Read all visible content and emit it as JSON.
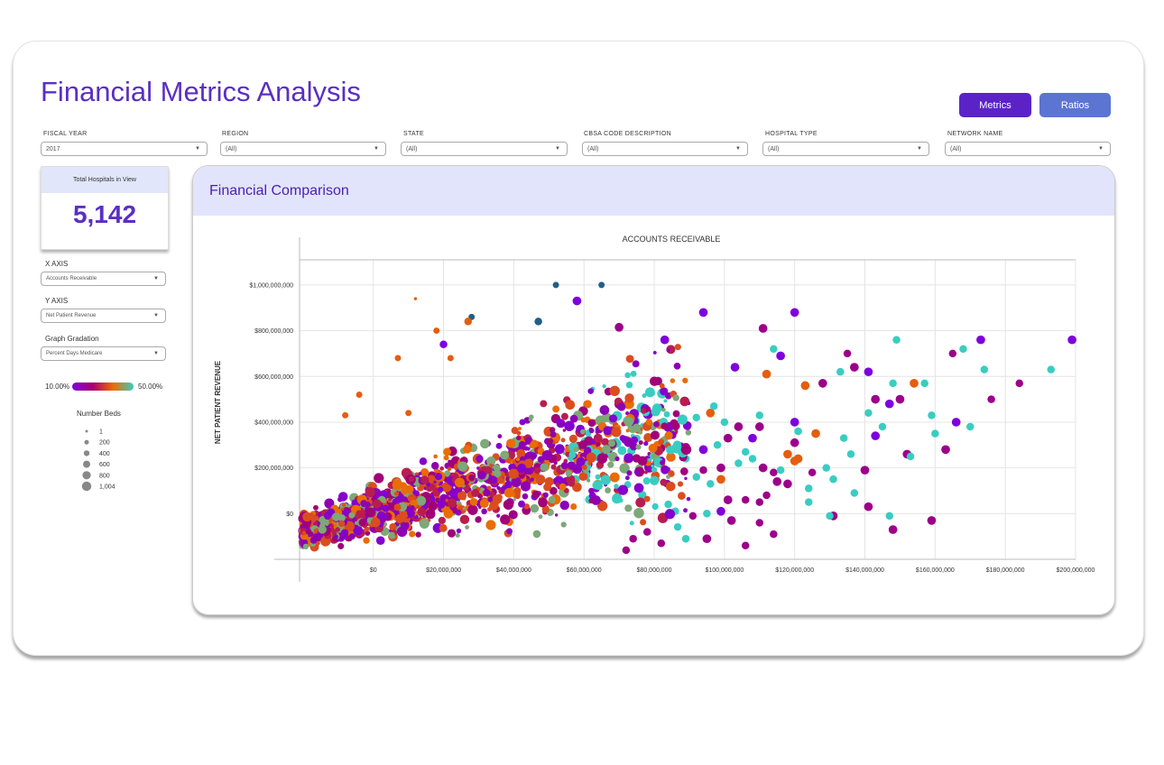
{
  "page": {
    "title": "Financial Metrics Analysis",
    "buttons": {
      "metrics": "Metrics",
      "ratios": "Ratios"
    }
  },
  "filters": [
    {
      "label": "FISCAL YEAR",
      "value": "2017"
    },
    {
      "label": "REGION",
      "value": "(All)"
    },
    {
      "label": "STATE",
      "value": "(All)"
    },
    {
      "label": "CBSA CODE DESCRIPTION",
      "value": "(All)"
    },
    {
      "label": "HOSPITAL TYPE",
      "value": "(All)"
    },
    {
      "label": "NETWORK NAME",
      "value": "(All)"
    }
  ],
  "kpi": {
    "label": "Total Hospitals in View",
    "value": "5,142"
  },
  "controls": {
    "x_axis_label": "X AXIS",
    "x_axis_value": "Accounts Receivable",
    "y_axis_label": "Y AXIS",
    "y_axis_value": "Net Patient Revenue",
    "gradation_label": "Graph Gradation",
    "gradation_value": "Percent Days Medicare"
  },
  "color_legend": {
    "min": "10.00%",
    "max": "50.00%",
    "colors": [
      "#7f00df",
      "#a5006e",
      "#ee6a00",
      "#39cdc2"
    ]
  },
  "size_legend": {
    "title": "Number Beds",
    "items": [
      "1",
      "200",
      "400",
      "600",
      "800",
      "1,004"
    ]
  },
  "panel": {
    "title": "Financial Comparison"
  },
  "chart_data": {
    "type": "scatter",
    "title": "ACCOUNTS RECEIVABLE",
    "xlabel": "ACCOUNTS RECEIVABLE",
    "ylabel": "NET PATIENT REVENUE",
    "xlim": [
      -21000000,
      200000000
    ],
    "ylim": [
      -200000000,
      1110000000
    ],
    "x_ticks": [
      0,
      20000000,
      40000000,
      60000000,
      80000000,
      100000000,
      120000000,
      140000000,
      160000000,
      180000000,
      200000000
    ],
    "x_tick_labels": [
      "$0",
      "$20,000,000",
      "$40,000,000",
      "$60,000,000",
      "$80,000,000",
      "$100,000,000",
      "$120,000,000",
      "$140,000,000",
      "$160,000,000",
      "$180,000,000",
      "$200,000,000"
    ],
    "y_ticks": [
      0,
      200000000,
      400000000,
      600000000,
      800000000,
      1000000000
    ],
    "y_tick_labels": [
      "$0",
      "$200,000,000",
      "$400,000,000",
      "$600,000,000",
      "$800,000,000",
      "$1,000,000,000"
    ],
    "grid": true,
    "color_encoding": "Percent Days Medicare",
    "size_encoding": "Number Beds",
    "points": [
      {
        "x": 52000000,
        "y": 1000000000,
        "beds": 200,
        "pct": 0.05
      },
      {
        "x": 65000000,
        "y": 1000000000,
        "beds": 200,
        "pct": 0.05
      },
      {
        "x": 58000000,
        "y": 930000000,
        "beds": 600,
        "pct": 0.1
      },
      {
        "x": 12000000,
        "y": 940000000,
        "beds": 1,
        "pct": 0.35
      },
      {
        "x": 28000000,
        "y": 860000000,
        "beds": 200,
        "pct": 0.05
      },
      {
        "x": 27000000,
        "y": 840000000,
        "beds": 400,
        "pct": 0.35
      },
      {
        "x": 47000000,
        "y": 840000000,
        "beds": 400,
        "pct": 0.05
      },
      {
        "x": 70000000,
        "y": 815000000,
        "beds": 600,
        "pct": 0.2
      },
      {
        "x": 94000000,
        "y": 880000000,
        "beds": 600,
        "pct": 0.1
      },
      {
        "x": 120000000,
        "y": 880000000,
        "beds": 600,
        "pct": 0.1
      },
      {
        "x": 111000000,
        "y": 810000000,
        "beds": 600,
        "pct": 0.2
      },
      {
        "x": 83000000,
        "y": 760000000,
        "beds": 600,
        "pct": 0.1
      },
      {
        "x": 114000000,
        "y": 720000000,
        "beds": 400,
        "pct": 0.5
      },
      {
        "x": 116000000,
        "y": 690000000,
        "beds": 600,
        "pct": 0.1
      },
      {
        "x": 135000000,
        "y": 700000000,
        "beds": 400,
        "pct": 0.2
      },
      {
        "x": 149000000,
        "y": 760000000,
        "beds": 400,
        "pct": 0.5
      },
      {
        "x": 173000000,
        "y": 760000000,
        "beds": 600,
        "pct": 0.1
      },
      {
        "x": 199000000,
        "y": 760000000,
        "beds": 600,
        "pct": 0.1
      },
      {
        "x": 168000000,
        "y": 720000000,
        "beds": 400,
        "pct": 0.5
      },
      {
        "x": 165000000,
        "y": 700000000,
        "beds": 400,
        "pct": 0.2
      },
      {
        "x": 174000000,
        "y": 630000000,
        "beds": 400,
        "pct": 0.5
      },
      {
        "x": 193000000,
        "y": 630000000,
        "beds": 400,
        "pct": 0.5
      },
      {
        "x": 184000000,
        "y": 570000000,
        "beds": 400,
        "pct": 0.2
      },
      {
        "x": 176000000,
        "y": 500000000,
        "beds": 400,
        "pct": 0.2
      },
      {
        "x": 141000000,
        "y": 620000000,
        "beds": 600,
        "pct": 0.1
      },
      {
        "x": 137000000,
        "y": 640000000,
        "beds": 600,
        "pct": 0.2
      },
      {
        "x": 133000000,
        "y": 620000000,
        "beds": 400,
        "pct": 0.5
      },
      {
        "x": 128000000,
        "y": 570000000,
        "beds": 600,
        "pct": 0.2
      },
      {
        "x": 123000000,
        "y": 560000000,
        "beds": 600,
        "pct": 0.35
      },
      {
        "x": 112000000,
        "y": 610000000,
        "beds": 600,
        "pct": 0.35
      },
      {
        "x": 103000000,
        "y": 640000000,
        "beds": 600,
        "pct": 0.1
      },
      {
        "x": 148000000,
        "y": 570000000,
        "beds": 400,
        "pct": 0.5
      },
      {
        "x": 150000000,
        "y": 500000000,
        "beds": 600,
        "pct": 0.2
      },
      {
        "x": 154000000,
        "y": 570000000,
        "beds": 600,
        "pct": 0.35
      },
      {
        "x": 157000000,
        "y": 570000000,
        "beds": 400,
        "pct": 0.5
      },
      {
        "x": 143000000,
        "y": 500000000,
        "beds": 600,
        "pct": 0.2
      },
      {
        "x": 147000000,
        "y": 480000000,
        "beds": 600,
        "pct": 0.1
      },
      {
        "x": 159000000,
        "y": 430000000,
        "beds": 400,
        "pct": 0.5
      },
      {
        "x": 160000000,
        "y": 350000000,
        "beds": 400,
        "pct": 0.5
      },
      {
        "x": 166000000,
        "y": 400000000,
        "beds": 600,
        "pct": 0.1
      },
      {
        "x": 170000000,
        "y": 380000000,
        "beds": 400,
        "pct": 0.5
      },
      {
        "x": 141000000,
        "y": 440000000,
        "beds": 400,
        "pct": 0.5
      },
      {
        "x": 145000000,
        "y": 380000000,
        "beds": 400,
        "pct": 0.5
      },
      {
        "x": 134000000,
        "y": 330000000,
        "beds": 400,
        "pct": 0.5
      },
      {
        "x": 136000000,
        "y": 260000000,
        "beds": 400,
        "pct": 0.5
      },
      {
        "x": 143000000,
        "y": 340000000,
        "beds": 600,
        "pct": 0.1
      },
      {
        "x": 152000000,
        "y": 260000000,
        "beds": 600,
        "pct": 0.2
      },
      {
        "x": 163000000,
        "y": 280000000,
        "beds": 600,
        "pct": 0.2
      },
      {
        "x": 153000000,
        "y": 250000000,
        "beds": 400,
        "pct": 0.5
      },
      {
        "x": 140000000,
        "y": 190000000,
        "beds": 600,
        "pct": 0.2
      },
      {
        "x": 131000000,
        "y": 150000000,
        "beds": 400,
        "pct": 0.5
      },
      {
        "x": 125000000,
        "y": 180000000,
        "beds": 400,
        "pct": 0.2
      },
      {
        "x": 120000000,
        "y": 400000000,
        "beds": 600,
        "pct": 0.1
      },
      {
        "x": 121000000,
        "y": 360000000,
        "beds": 400,
        "pct": 0.5
      },
      {
        "x": 126000000,
        "y": 350000000,
        "beds": 600,
        "pct": 0.35
      },
      {
        "x": 120000000,
        "y": 310000000,
        "beds": 600,
        "pct": 0.2
      },
      {
        "x": 118000000,
        "y": 260000000,
        "beds": 600,
        "pct": 0.35
      },
      {
        "x": 121000000,
        "y": 240000000,
        "beds": 600,
        "pct": 0.35
      },
      {
        "x": 110000000,
        "y": 430000000,
        "beds": 400,
        "pct": 0.5
      },
      {
        "x": 110000000,
        "y": 380000000,
        "beds": 600,
        "pct": 0.2
      },
      {
        "x": 108000000,
        "y": 330000000,
        "beds": 600,
        "pct": 0.1
      },
      {
        "x": 104000000,
        "y": 380000000,
        "beds": 600,
        "pct": 0.2
      },
      {
        "x": 100000000,
        "y": 400000000,
        "beds": 400,
        "pct": 0.5
      },
      {
        "x": 96000000,
        "y": 440000000,
        "beds": 600,
        "pct": 0.35
      },
      {
        "x": 97000000,
        "y": 470000000,
        "beds": 400,
        "pct": 0.5
      },
      {
        "x": 92000000,
        "y": 420000000,
        "beds": 400,
        "pct": 0.5
      },
      {
        "x": 101000000,
        "y": 330000000,
        "beds": 600,
        "pct": 0.2
      },
      {
        "x": 98000000,
        "y": 300000000,
        "beds": 400,
        "pct": 0.5
      },
      {
        "x": 94000000,
        "y": 280000000,
        "beds": 600,
        "pct": 0.1
      },
      {
        "x": 89000000,
        "y": 290000000,
        "beds": 600,
        "pct": 0.2
      },
      {
        "x": 89000000,
        "y": 240000000,
        "beds": 400,
        "pct": 0.5
      },
      {
        "x": 106000000,
        "y": 270000000,
        "beds": 400,
        "pct": 0.5
      },
      {
        "x": 108000000,
        "y": 240000000,
        "beds": 400,
        "pct": 0.5
      },
      {
        "x": 99000000,
        "y": 150000000,
        "beds": 600,
        "pct": 0.35
      },
      {
        "x": 96000000,
        "y": 130000000,
        "beds": 400,
        "pct": 0.5
      },
      {
        "x": 92000000,
        "y": 160000000,
        "beds": 400,
        "pct": 0.5
      },
      {
        "x": 94000000,
        "y": 190000000,
        "beds": 400,
        "pct": 0.2
      },
      {
        "x": 99000000,
        "y": 200000000,
        "beds": 600,
        "pct": 0.2
      },
      {
        "x": 104000000,
        "y": 220000000,
        "beds": 400,
        "pct": 0.5
      },
      {
        "x": 111000000,
        "y": 200000000,
        "beds": 600,
        "pct": 0.2
      },
      {
        "x": 114000000,
        "y": 180000000,
        "beds": 400,
        "pct": 0.2
      },
      {
        "x": 118000000,
        "y": 130000000,
        "beds": 600,
        "pct": 0.2
      },
      {
        "x": 115000000,
        "y": 140000000,
        "beds": 600,
        "pct": 0.2
      },
      {
        "x": 112000000,
        "y": 80000000,
        "beds": 400,
        "pct": 0.2
      },
      {
        "x": 124000000,
        "y": 50000000,
        "beds": 400,
        "pct": 0.5
      },
      {
        "x": 110000000,
        "y": 50000000,
        "beds": 400,
        "pct": 0.2
      },
      {
        "x": 106000000,
        "y": 60000000,
        "beds": 400,
        "pct": 0.2
      },
      {
        "x": 101000000,
        "y": 60000000,
        "beds": 600,
        "pct": 0.2
      },
      {
        "x": 99000000,
        "y": 10000000,
        "beds": 600,
        "pct": 0.1
      },
      {
        "x": 102000000,
        "y": -30000000,
        "beds": 600,
        "pct": 0.2
      },
      {
        "x": 95000000,
        "y": 0,
        "beds": 400,
        "pct": 0.5
      },
      {
        "x": 91000000,
        "y": -10000000,
        "beds": 400,
        "pct": 0.2
      },
      {
        "x": 84000000,
        "y": 40000000,
        "beds": 400,
        "pct": 0.5
      },
      {
        "x": 86000000,
        "y": 10000000,
        "beds": 400,
        "pct": 0.5
      },
      {
        "x": 110000000,
        "y": -40000000,
        "beds": 400,
        "pct": 0.2
      },
      {
        "x": 114000000,
        "y": -90000000,
        "beds": 400,
        "pct": 0.2
      },
      {
        "x": 106000000,
        "y": -140000000,
        "beds": 400,
        "pct": 0.2
      },
      {
        "x": 95000000,
        "y": -110000000,
        "beds": 600,
        "pct": 0.2
      },
      {
        "x": 89000000,
        "y": -110000000,
        "beds": 400,
        "pct": 0.5
      },
      {
        "x": 82000000,
        "y": -130000000,
        "beds": 400,
        "pct": 0.2
      },
      {
        "x": 78000000,
        "y": -80000000,
        "beds": 400,
        "pct": 0.2
      },
      {
        "x": 74000000,
        "y": -110000000,
        "beds": 400,
        "pct": 0.2
      },
      {
        "x": 72000000,
        "y": -160000000,
        "beds": 400,
        "pct": 0.2
      },
      {
        "x": 131000000,
        "y": -10000000,
        "beds": 600,
        "pct": 0.2
      },
      {
        "x": 130000000,
        "y": -10000000,
        "beds": 400,
        "pct": 0.5
      },
      {
        "x": 141000000,
        "y": 30000000,
        "beds": 600,
        "pct": 0.2
      },
      {
        "x": 147000000,
        "y": -10000000,
        "beds": 400,
        "pct": 0.5
      },
      {
        "x": 148000000,
        "y": -70000000,
        "beds": 600,
        "pct": 0.2
      },
      {
        "x": 159000000,
        "y": -30000000,
        "beds": 600,
        "pct": 0.2
      },
      {
        "x": 137000000,
        "y": 90000000,
        "beds": 400,
        "pct": 0.5
      },
      {
        "x": 124000000,
        "y": 110000000,
        "beds": 400,
        "pct": 0.5
      },
      {
        "x": 120000000,
        "y": 230000000,
        "beds": 600,
        "pct": 0.35
      },
      {
        "x": 129000000,
        "y": 200000000,
        "beds": 400,
        "pct": 0.5
      },
      {
        "x": 116000000,
        "y": 190000000,
        "beds": 400,
        "pct": 0.5
      },
      {
        "x": 10000000,
        "y": 440000000,
        "beds": 200,
        "pct": 0.35
      },
      {
        "x": 7000000,
        "y": 680000000,
        "beds": 200,
        "pct": 0.35
      },
      {
        "x": -8000000,
        "y": 430000000,
        "beds": 200,
        "pct": 0.35
      },
      {
        "x": -4000000,
        "y": 520000000,
        "beds": 200,
        "pct": 0.35
      },
      {
        "x": 20000000,
        "y": 740000000,
        "beds": 400,
        "pct": 0.1
      },
      {
        "x": 18000000,
        "y": 800000000,
        "beds": 200,
        "pct": 0.35
      },
      {
        "x": 22000000,
        "y": 680000000,
        "beds": 200,
        "pct": 0.35
      }
    ]
  }
}
